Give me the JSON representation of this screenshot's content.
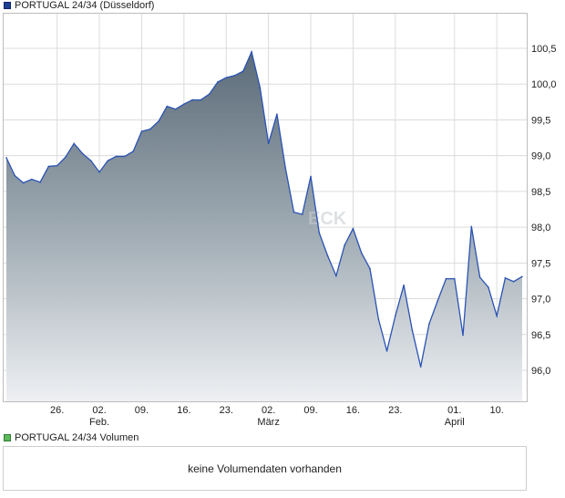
{
  "price_legend": {
    "label": "PORTUGAL 24/34 (Düsseldorf)",
    "color": "#1f3f93"
  },
  "volume_legend": {
    "label": "PORTUGAL 24/34 Volumen",
    "color": "#5cb85c"
  },
  "volume_panel": {
    "message": "keine Volumendaten vorhanden"
  },
  "watermark": "ECK",
  "chart_data": {
    "type": "area",
    "title": "PORTUGAL 24/34 (Düsseldorf)",
    "ylim": [
      95.5,
      101.0
    ],
    "y_ticks": [
      "100,5",
      "100,0",
      "99,5",
      "99,0",
      "98,5",
      "98,0",
      "97,5",
      "97,0",
      "96,5",
      "96,0"
    ],
    "y_tick_values": [
      100.5,
      100.0,
      99.5,
      99.0,
      98.5,
      98.0,
      97.5,
      97.0,
      96.5,
      96.0
    ],
    "x_ticks": [
      {
        "day": "26.",
        "month": "",
        "index": 6
      },
      {
        "day": "02.",
        "month": "Feb.",
        "index": 11
      },
      {
        "day": "09.",
        "month": "",
        "index": 16
      },
      {
        "day": "16.",
        "month": "",
        "index": 21
      },
      {
        "day": "23.",
        "month": "",
        "index": 26
      },
      {
        "day": "02.",
        "month": "März",
        "index": 31
      },
      {
        "day": "09.",
        "month": "",
        "index": 36
      },
      {
        "day": "16.",
        "month": "",
        "index": 41
      },
      {
        "day": "23.",
        "month": "",
        "index": 46
      },
      {
        "day": "01.",
        "month": "April",
        "index": 53
      },
      {
        "day": "10.",
        "month": "",
        "index": 58
      }
    ],
    "series": [
      {
        "values": [
          98.97,
          98.72,
          98.62,
          98.67,
          98.63,
          98.85,
          98.86,
          98.98,
          99.17,
          99.03,
          98.93,
          98.77,
          98.93,
          98.99,
          98.99,
          99.06,
          99.34,
          99.37,
          99.48,
          99.69,
          99.65,
          99.72,
          99.78,
          99.78,
          99.86,
          100.03,
          100.09,
          100.12,
          100.18,
          100.45,
          99.95,
          99.17,
          99.58,
          98.83,
          98.21,
          98.18,
          98.71,
          97.92,
          97.6,
          97.32,
          97.75,
          97.98,
          97.64,
          97.42,
          96.72,
          96.27,
          96.76,
          97.19,
          96.56,
          96.05,
          96.65,
          96.97,
          97.28,
          97.28,
          96.49,
          98.01,
          97.3,
          97.16,
          96.76,
          97.29,
          97.24,
          97.31
        ],
        "color": "#2a52b3"
      }
    ]
  }
}
